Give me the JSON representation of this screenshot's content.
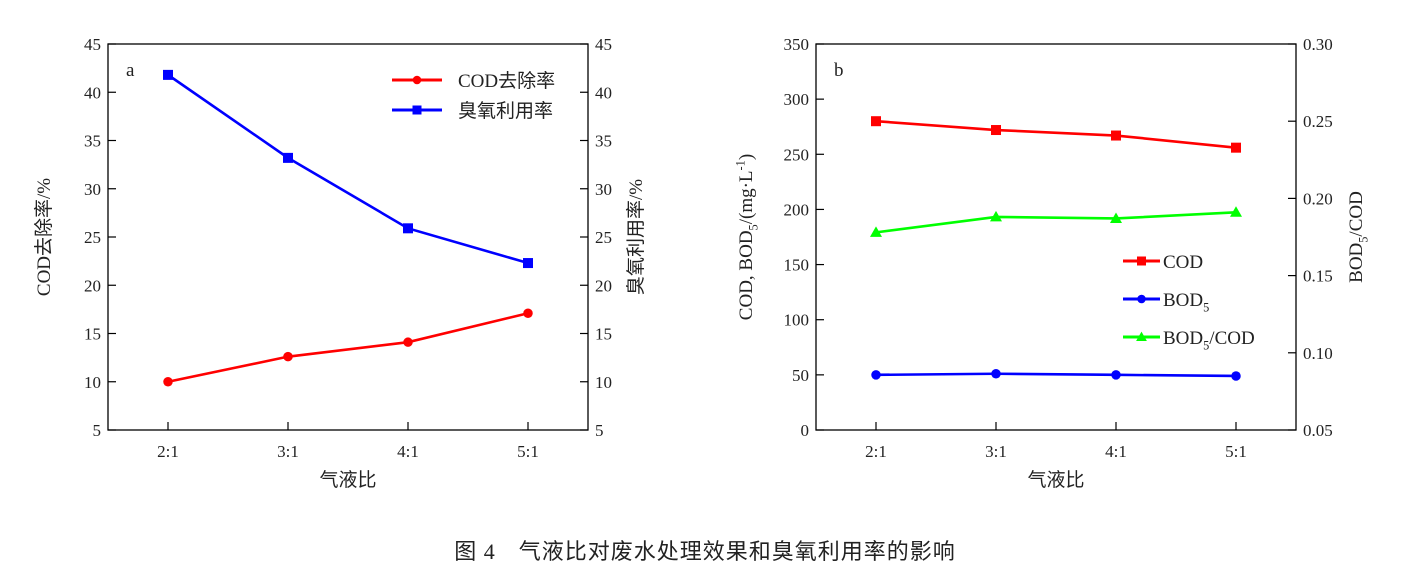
{
  "caption": "图 4　气液比对废水处理效果和臭氧利用率的影响",
  "chart_data": [
    {
      "type": "line",
      "panel_label": "a",
      "categories": [
        "2:1",
        "3:1",
        "4:1",
        "5:1"
      ],
      "xlabel": "气液比",
      "ylabel": "COD去除率/%",
      "ylabel_right": "臭氧利用率/%",
      "ylim": [
        5,
        45
      ],
      "yticks": [
        5,
        10,
        15,
        20,
        25,
        30,
        35,
        40,
        45
      ],
      "ylim_right": [
        5,
        45
      ],
      "yticks_right": [
        5,
        10,
        15,
        20,
        25,
        30,
        35,
        40,
        45
      ],
      "legend_position": "top-right",
      "grid": false,
      "series": [
        {
          "name": "COD去除率",
          "axis": "left",
          "marker": "circle",
          "color": "#ff0000",
          "values": [
            10.0,
            12.6,
            14.1,
            17.1
          ]
        },
        {
          "name": "臭氧利用率",
          "axis": "right",
          "marker": "square",
          "color": "#0000ff",
          "values": [
            41.8,
            33.2,
            25.9,
            22.3
          ]
        }
      ]
    },
    {
      "type": "line",
      "panel_label": "b",
      "categories": [
        "2:1",
        "3:1",
        "4:1",
        "5:1"
      ],
      "xlabel": "气液比",
      "ylabel": "COD, BOD5/(mg·L-1)",
      "ylabel_right": "BOD5/COD",
      "ylim": [
        0,
        350
      ],
      "yticks": [
        0,
        50,
        100,
        150,
        200,
        250,
        300,
        350
      ],
      "ylim_right": [
        0.05,
        0.3
      ],
      "yticks_right": [
        "0.05",
        "0.10",
        "0.15",
        "0.20",
        "0.25",
        "0.30"
      ],
      "legend_position": "center-right",
      "grid": false,
      "series": [
        {
          "name": "COD",
          "axis": "left",
          "marker": "square",
          "color": "#ff0000",
          "values": [
            280,
            272,
            267,
            256
          ]
        },
        {
          "name": "BOD5",
          "axis": "left",
          "marker": "circle",
          "color": "#0000ff",
          "values": [
            50,
            51,
            50,
            49
          ]
        },
        {
          "name": "BOD5/COD",
          "axis": "right",
          "marker": "triangle",
          "color": "#00ff00",
          "values": [
            0.178,
            0.188,
            0.187,
            0.191
          ]
        }
      ]
    }
  ]
}
